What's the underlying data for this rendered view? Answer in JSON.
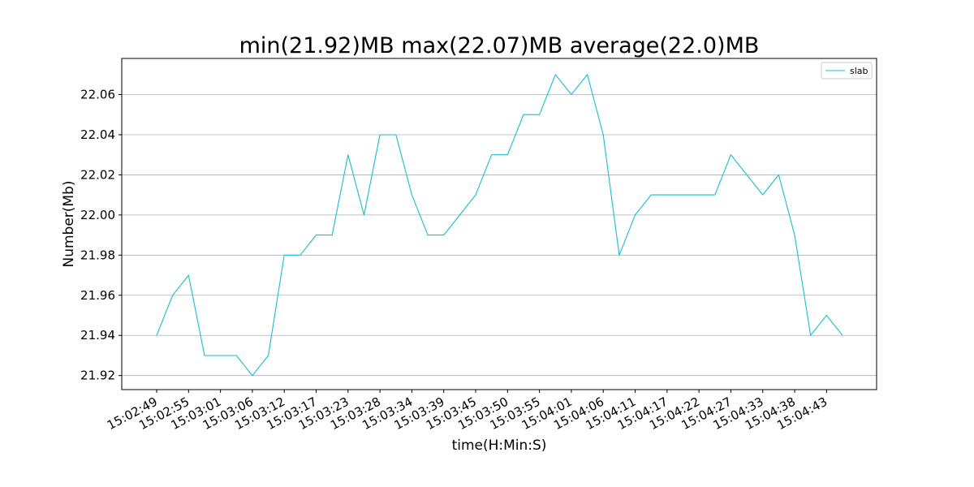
{
  "chart_data": {
    "type": "line",
    "title": "min(21.92)MB max(22.07)MB average(22.0)MB",
    "xlabel": "time(H:Min:S)",
    "ylabel": "Number(Mb)",
    "ylim": [
      21.913,
      22.078
    ],
    "yticks": [
      21.92,
      21.94,
      21.96,
      21.98,
      22.0,
      22.02,
      22.04,
      22.06
    ],
    "ytick_labels": [
      "21.92",
      "21.94",
      "21.96",
      "21.98",
      "22.00",
      "22.02",
      "22.04",
      "22.06"
    ],
    "x": [
      "15:02:49",
      "15:02:52",
      "15:02:55",
      "15:02:58",
      "15:03:01",
      "15:03:03",
      "15:03:06",
      "15:03:09",
      "15:03:12",
      "15:03:14",
      "15:03:17",
      "15:03:20",
      "15:03:23",
      "15:03:25",
      "15:03:28",
      "15:03:31",
      "15:03:34",
      "15:03:36",
      "15:03:39",
      "15:03:42",
      "15:03:45",
      "15:03:47",
      "15:03:50",
      "15:03:53",
      "15:03:55",
      "15:03:58",
      "15:04:01",
      "15:04:04",
      "15:04:06",
      "15:04:09",
      "15:04:11",
      "15:04:14",
      "15:04:17",
      "15:04:20",
      "15:04:22",
      "15:04:25",
      "15:04:27",
      "15:04:30",
      "15:04:33",
      "15:04:36",
      "15:04:38",
      "15:04:41",
      "15:04:43",
      "15:04:46"
    ],
    "xtick_labels": [
      "15:02:49",
      "15:02:55",
      "15:03:01",
      "15:03:06",
      "15:03:12",
      "15:03:17",
      "15:03:23",
      "15:03:28",
      "15:03:34",
      "15:03:39",
      "15:03:45",
      "15:03:50",
      "15:03:55",
      "15:04:01",
      "15:04:06",
      "15:04:11",
      "15:04:17",
      "15:04:22",
      "15:04:27",
      "15:04:33",
      "15:04:38",
      "15:04:43"
    ],
    "series": [
      {
        "name": "slab",
        "color": "#17becf",
        "values": [
          21.94,
          21.96,
          21.97,
          21.93,
          21.93,
          21.93,
          21.92,
          21.93,
          21.98,
          21.98,
          21.99,
          21.99,
          22.03,
          22.0,
          22.04,
          22.04,
          22.01,
          21.99,
          21.99,
          22.0,
          22.01,
          22.03,
          22.03,
          22.05,
          22.05,
          22.07,
          22.06,
          22.07,
          22.04,
          21.98,
          22.0,
          22.01,
          22.01,
          22.01,
          22.01,
          22.01,
          22.03,
          22.02,
          22.01,
          22.02,
          21.99,
          21.94,
          21.95,
          21.94
        ]
      }
    ],
    "grid": "horizontal",
    "legend_position": "top-right"
  }
}
